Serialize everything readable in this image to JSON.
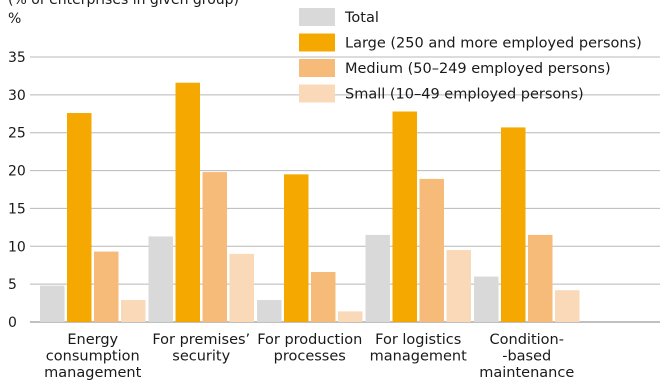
{
  "chart_data": {
    "type": "bar",
    "title": "(% of enterprises in given group)",
    "ylabel": "%",
    "xlabel": "",
    "ylim": [
      0,
      35
    ],
    "yticks": [
      0,
      5,
      10,
      15,
      20,
      25,
      30,
      35
    ],
    "grid": true,
    "legend_position": "top-right",
    "categories": [
      [
        "Energy",
        "consumption",
        "management"
      ],
      [
        "For premises’",
        "security"
      ],
      [
        "For production",
        "processes"
      ],
      [
        "For logistics",
        "management"
      ],
      [
        "Condition-",
        "-based",
        "maintenance"
      ]
    ],
    "series": [
      {
        "name": "Total",
        "color": "#d9d9d9",
        "values": [
          4.8,
          11.3,
          2.9,
          11.5,
          6.0
        ]
      },
      {
        "name": "Large (250 and more employed persons)",
        "color": "#f5a800",
        "values": [
          27.6,
          31.6,
          19.5,
          27.8,
          25.7
        ]
      },
      {
        "name": "Medium (50–249 employed persons)",
        "color": "#f6bb78",
        "values": [
          9.3,
          19.8,
          6.6,
          18.9,
          11.5
        ]
      },
      {
        "name": "Small (10–49 employed persons)",
        "color": "#fad9b8",
        "values": [
          2.9,
          9.0,
          1.4,
          9.5,
          4.2
        ]
      }
    ]
  }
}
